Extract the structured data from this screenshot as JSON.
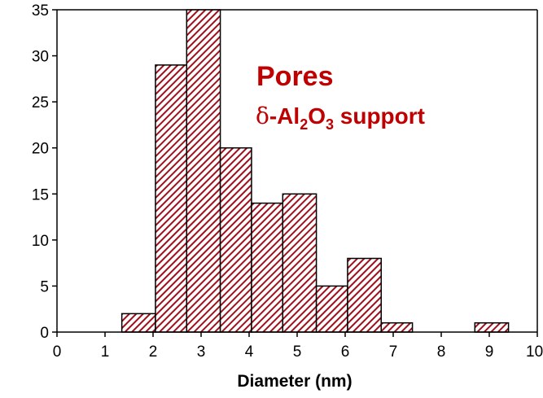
{
  "chart_data": {
    "type": "bar",
    "subtype": "histogram",
    "title": "",
    "xlabel": "Diameter (nm)",
    "ylabel": "",
    "xlim": [
      0,
      10
    ],
    "ylim": [
      0,
      35
    ],
    "x_ticks": [
      "0",
      "1",
      "2",
      "3",
      "4",
      "5",
      "6",
      "7",
      "8",
      "9",
      "10"
    ],
    "y_ticks": [
      "0",
      "5",
      "10",
      "15",
      "20",
      "25",
      "30",
      "35"
    ],
    "grid": false,
    "legend": "none",
    "bins": [
      {
        "x0": 1.35,
        "x1": 2.05,
        "value": 2
      },
      {
        "x0": 2.05,
        "x1": 2.7,
        "value": 29
      },
      {
        "x0": 2.7,
        "x1": 3.4,
        "value": 35
      },
      {
        "x0": 3.4,
        "x1": 4.05,
        "value": 20
      },
      {
        "x0": 4.05,
        "x1": 4.7,
        "value": 14
      },
      {
        "x0": 4.7,
        "x1": 5.4,
        "value": 15
      },
      {
        "x0": 5.4,
        "x1": 6.05,
        "value": 5
      },
      {
        "x0": 6.05,
        "x1": 6.75,
        "value": 8
      },
      {
        "x0": 6.75,
        "x1": 7.4,
        "value": 1
      },
      {
        "x0": 8.7,
        "x1": 9.4,
        "value": 1
      }
    ],
    "bar_fill": "hatched",
    "bar_color": "#a0101c",
    "annotations": {
      "line1": "Pores",
      "line2_symbol": "δ",
      "line2_chem": "-Al",
      "line2_sub1": "2",
      "line2_mid": "O",
      "line2_sub2": "3",
      "line2_rest": " support",
      "color": "#c00000"
    }
  }
}
